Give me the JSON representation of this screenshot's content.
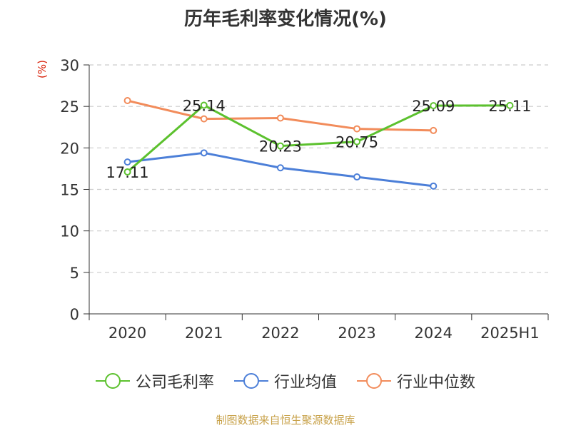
{
  "chart_data": {
    "type": "line",
    "title": "历年毛利率变化情况(%)",
    "ylabel": "(%)",
    "xlabel": "",
    "categories": [
      "2020",
      "2021",
      "2022",
      "2023",
      "2024",
      "2025H1"
    ],
    "ylim": [
      0,
      30
    ],
    "yticks": [
      0,
      5,
      10,
      15,
      20,
      25,
      30
    ],
    "grid": true,
    "legend_position": "bottom",
    "series": [
      {
        "name": "公司毛利率",
        "color": "#5cc12e",
        "values": [
          17.11,
          25.14,
          20.23,
          20.75,
          25.09,
          25.11
        ],
        "labels": [
          "17.11",
          "25.14",
          "20.23",
          "20.75",
          "25.09",
          "25.11"
        ]
      },
      {
        "name": "行业均值",
        "color": "#4c7fd8",
        "values": [
          18.3,
          19.4,
          17.6,
          16.5,
          15.4,
          null
        ]
      },
      {
        "name": "行业中位数",
        "color": "#f28c5b",
        "values": [
          25.7,
          23.5,
          23.6,
          22.3,
          22.1,
          null
        ]
      }
    ]
  },
  "source": "制图数据来自恒生聚源数据库"
}
